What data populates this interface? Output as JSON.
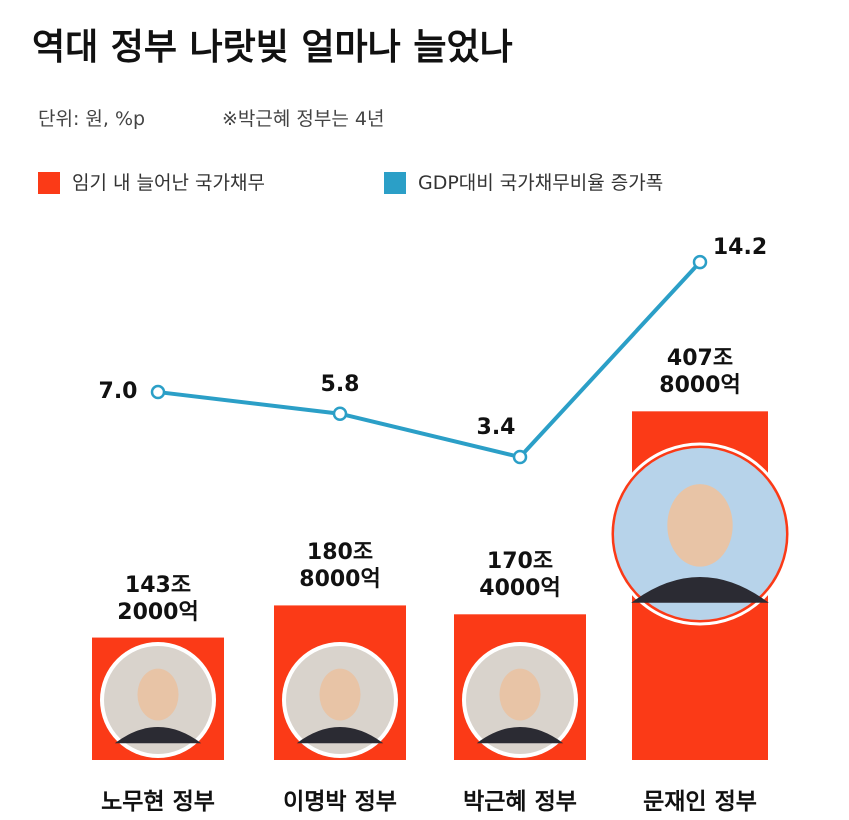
{
  "chart_data": {
    "type": "bar-line",
    "title": "역대 정부 나랏빚 얼마나 늘었나",
    "subtitle": "단위: 원, %p",
    "note": "※박근혜 정부는 4년",
    "categories": [
      "노무현 정부",
      "이명박 정부",
      "박근혜 정부",
      "문재인 정부"
    ],
    "series": [
      {
        "name": "임기 내 늘어난 국가채무",
        "color": "#fb3a17",
        "type": "bar",
        "values": [
          143.2,
          180.8,
          170.4,
          407.8
        ],
        "value_labels": [
          "143조\n2000억",
          "180조\n8000억",
          "170조\n4000억",
          "407조\n8000억"
        ]
      },
      {
        "name": "GDP대비 국가채무비율 증가폭",
        "color": "#2b9fc7",
        "type": "line",
        "values": [
          7.0,
          5.8,
          3.4,
          14.2
        ],
        "value_labels": [
          "7.0",
          "5.8",
          "3.4",
          "14.2"
        ]
      }
    ]
  }
}
